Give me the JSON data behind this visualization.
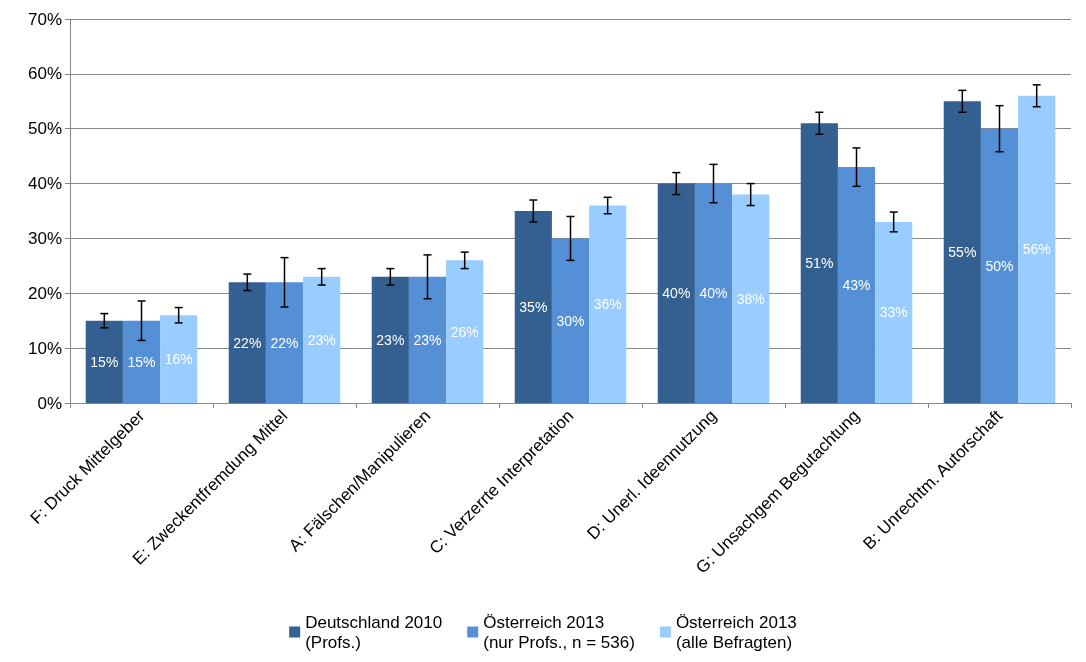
{
  "chart_data": {
    "type": "bar",
    "categories": [
      "F: Druck Mittelgeber",
      "E: Zweckentfremdung Mittel",
      "A: Fälschen/Manipulieren",
      "C: Verzerrte Interpretation",
      "D: Unerl. Ideennutzung",
      "G: Unsachgem Begutachtung",
      "B: Unrechtm. Autorschaft"
    ],
    "series": [
      {
        "name": "Deutschland 2010\n(Profs.)",
        "color": "#335f91",
        "values": [
          15,
          22,
          23,
          35,
          40,
          51,
          55
        ],
        "value_labels": [
          "15%",
          "22%",
          "23%",
          "35%",
          "40%",
          "51%",
          "55%"
        ],
        "errors": [
          1.3,
          1.5,
          1.5,
          2,
          2,
          2,
          2
        ]
      },
      {
        "name": "Österreich 2013\n(nur Profs., n = 536)",
        "color": "#5590d6",
        "values": [
          15,
          22,
          23,
          30,
          40,
          43,
          50
        ],
        "value_labels": [
          "15%",
          "22%",
          "23%",
          "30%",
          "40%",
          "43%",
          "50%"
        ],
        "errors": [
          3.6,
          4.5,
          4,
          4,
          3.5,
          3.5,
          4.2
        ]
      },
      {
        "name": "Österreich 2013\n(alle Befragten)",
        "color": "#99ccff",
        "values": [
          16,
          23,
          26,
          36,
          38,
          33,
          56
        ],
        "value_labels": [
          "16%",
          "23%",
          "26%",
          "36%",
          "38%",
          "33%",
          "56%"
        ],
        "errors": [
          1.4,
          1.5,
          1.5,
          1.5,
          2,
          1.8,
          2
        ]
      }
    ],
    "ylim": [
      0,
      70
    ],
    "yticks": [
      {
        "value": 0,
        "label": "0%"
      },
      {
        "value": 10,
        "label": "10%"
      },
      {
        "value": 20,
        "label": "20%"
      },
      {
        "value": 30,
        "label": "30%"
      },
      {
        "value": 40,
        "label": "40%"
      },
      {
        "value": 50,
        "label": "50%"
      },
      {
        "value": 60,
        "label": "60%"
      },
      {
        "value": 70,
        "label": "70%"
      }
    ],
    "grid": "y",
    "legend": "bottom"
  }
}
